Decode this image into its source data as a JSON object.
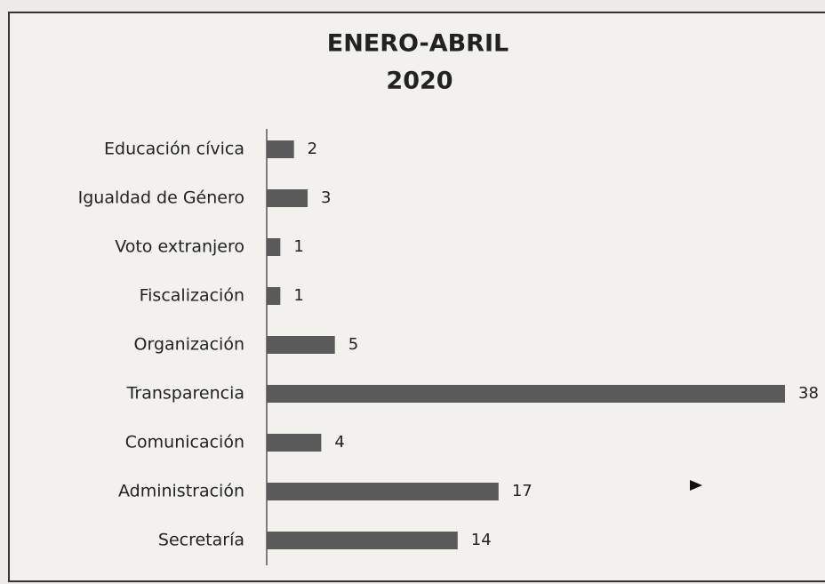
{
  "chart_data": {
    "type": "bar",
    "orientation": "horizontal",
    "title": "ENERO-ABRIL",
    "subtitle": "2020",
    "categories": [
      "Educación cívica",
      "Igualdad de Género",
      "Voto extranjero",
      "Fiscalización",
      "Organización",
      "Transparencia",
      "Comunicación",
      "Administración",
      "Secretaría"
    ],
    "values": [
      2,
      3,
      1,
      1,
      5,
      38,
      4,
      17,
      14
    ],
    "color": "#5a5a5a"
  }
}
